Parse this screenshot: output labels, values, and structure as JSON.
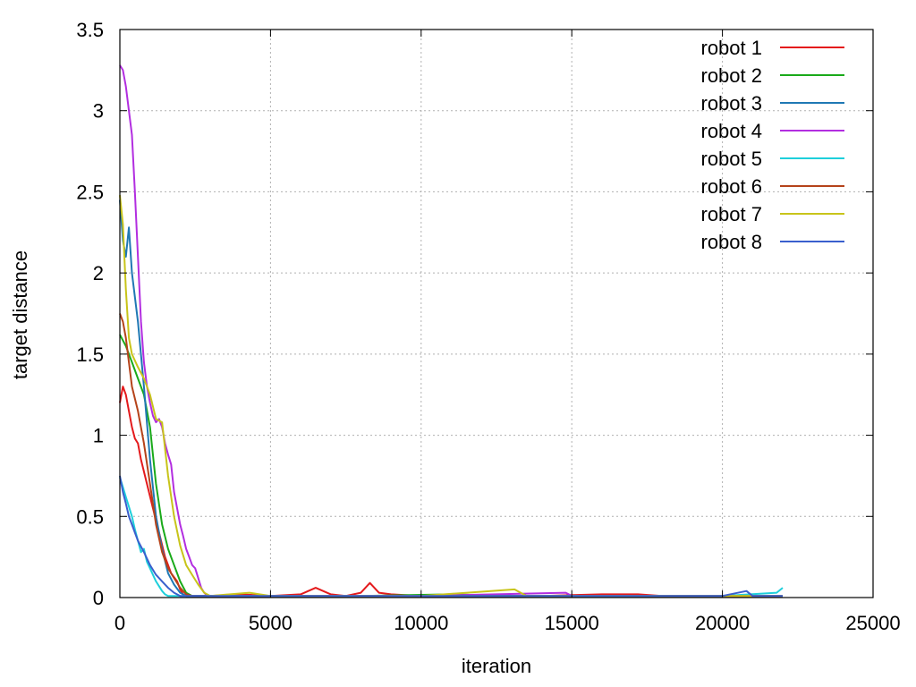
{
  "chart_data": {
    "type": "line",
    "title": "",
    "xlabel": "iteration",
    "ylabel": "target distance",
    "xlim": [
      0,
      25000
    ],
    "ylim": [
      0,
      3.5
    ],
    "xticks": [
      "0",
      "5000",
      "10000",
      "15000",
      "20000",
      "25000"
    ],
    "yticks": [
      "0",
      "0.5",
      "1",
      "1.5",
      "2",
      "2.5",
      "3",
      "3.5"
    ],
    "grid": true,
    "legend_position": "top-right",
    "series": [
      {
        "name": "robot 1",
        "color": "#e41a1c",
        "x": [
          0,
          100,
          200,
          300,
          400,
          500,
          600,
          700,
          900,
          1100,
          1300,
          1500,
          1700,
          1900,
          2000,
          2100,
          2200,
          3000,
          4000,
          5000,
          6000,
          6500,
          7000,
          7500,
          8000,
          8300,
          8600,
          9000,
          10000,
          12000,
          14000,
          16000,
          17200,
          18000,
          20000,
          22000
        ],
        "y": [
          1.2,
          1.3,
          1.25,
          1.15,
          1.05,
          0.98,
          0.95,
          0.85,
          0.7,
          0.55,
          0.4,
          0.25,
          0.15,
          0.1,
          0.05,
          0.02,
          0.01,
          0.01,
          0.02,
          0.01,
          0.02,
          0.06,
          0.02,
          0.01,
          0.03,
          0.09,
          0.03,
          0.02,
          0.01,
          0.01,
          0.01,
          0.02,
          0.02,
          0.01,
          0.01,
          0.01
        ]
      },
      {
        "name": "robot 2",
        "color": "#1aaa1a",
        "x": [
          0,
          200,
          400,
          600,
          800,
          1000,
          1200,
          1400,
          1600,
          1800,
          2000,
          2200,
          2400,
          3000,
          5000,
          8000,
          11000,
          13000,
          15000,
          17000,
          20000,
          22000
        ],
        "y": [
          1.62,
          1.55,
          1.45,
          1.35,
          1.25,
          1.05,
          0.7,
          0.45,
          0.3,
          0.2,
          0.1,
          0.03,
          0.01,
          0.01,
          0.01,
          0.01,
          0.02,
          0.01,
          0.01,
          0.01,
          0.01,
          0.01
        ]
      },
      {
        "name": "robot 3",
        "color": "#1f78b4",
        "x": [
          0,
          100,
          200,
          300,
          400,
          600,
          800,
          1000,
          1200,
          1400,
          1600,
          1800,
          2000,
          2200,
          2500,
          5000,
          10000,
          15000,
          20000,
          22000
        ],
        "y": [
          2.45,
          2.2,
          2.1,
          2.28,
          2.0,
          1.7,
          1.3,
          0.85,
          0.5,
          0.3,
          0.15,
          0.08,
          0.03,
          0.01,
          0.01,
          0.01,
          0.01,
          0.01,
          0.01,
          0.01
        ]
      },
      {
        "name": "robot 4",
        "color": "#b22ee0",
        "x": [
          0,
          100,
          200,
          300,
          400,
          500,
          600,
          700,
          800,
          900,
          1000,
          1100,
          1200,
          1300,
          1400,
          1500,
          1600,
          1700,
          1800,
          1900,
          2000,
          2100,
          2200,
          2300,
          2400,
          2500,
          2600,
          2700,
          2800,
          2900,
          3000,
          5000,
          10000,
          14800,
          15000,
          20000,
          22000
        ],
        "y": [
          3.28,
          3.25,
          3.15,
          3.0,
          2.85,
          2.5,
          2.1,
          1.7,
          1.45,
          1.3,
          1.2,
          1.12,
          1.08,
          1.1,
          1.05,
          0.95,
          0.88,
          0.82,
          0.65,
          0.55,
          0.45,
          0.38,
          0.3,
          0.25,
          0.2,
          0.18,
          0.12,
          0.06,
          0.03,
          0.01,
          0.01,
          0.01,
          0.01,
          0.03,
          0.01,
          0.01,
          0.01
        ]
      },
      {
        "name": "robot 5",
        "color": "#1ecfdb",
        "x": [
          0,
          100,
          200,
          300,
          400,
          500,
          600,
          700,
          800,
          900,
          1000,
          1100,
          1200,
          1300,
          1400,
          1500,
          1600,
          1700,
          1800,
          2000,
          2500,
          5000,
          10000,
          15000,
          20000,
          21800,
          22000
        ],
        "y": [
          0.74,
          0.68,
          0.62,
          0.56,
          0.5,
          0.42,
          0.35,
          0.28,
          0.3,
          0.22,
          0.18,
          0.14,
          0.1,
          0.07,
          0.04,
          0.02,
          0.01,
          0.01,
          0.01,
          0.01,
          0.01,
          0.01,
          0.01,
          0.01,
          0.01,
          0.03,
          0.06
        ]
      },
      {
        "name": "robot 6",
        "color": "#b5431a",
        "x": [
          0,
          100,
          200,
          300,
          400,
          600,
          800,
          1000,
          1200,
          1400,
          1600,
          1800,
          2000,
          2200,
          2400,
          3000,
          5000,
          10000,
          15000,
          20000,
          22000
        ],
        "y": [
          1.75,
          1.7,
          1.6,
          1.45,
          1.3,
          1.15,
          0.95,
          0.7,
          0.45,
          0.28,
          0.18,
          0.12,
          0.06,
          0.02,
          0.01,
          0.01,
          0.01,
          0.01,
          0.01,
          0.01,
          0.01
        ]
      },
      {
        "name": "robot 7",
        "color": "#c8c41a",
        "x": [
          0,
          100,
          200,
          300,
          400,
          600,
          800,
          1000,
          1200,
          1400,
          1600,
          1800,
          2000,
          2200,
          2400,
          2600,
          2800,
          3000,
          4300,
          5000,
          10000,
          13100,
          13500,
          15000,
          20000,
          22000
        ],
        "y": [
          2.48,
          2.3,
          1.9,
          1.6,
          1.5,
          1.42,
          1.35,
          1.25,
          1.1,
          1.08,
          0.75,
          0.5,
          0.32,
          0.2,
          0.14,
          0.08,
          0.03,
          0.01,
          0.03,
          0.01,
          0.01,
          0.05,
          0.01,
          0.01,
          0.01,
          0.01
        ]
      },
      {
        "name": "robot 8",
        "color": "#3a5fcd",
        "x": [
          0,
          100,
          200,
          300,
          400,
          500,
          600,
          800,
          1000,
          1200,
          1400,
          1600,
          1800,
          2000,
          2200,
          2500,
          5000,
          10000,
          15000,
          20000,
          20800,
          21000,
          22000
        ],
        "y": [
          0.75,
          0.65,
          0.58,
          0.5,
          0.45,
          0.4,
          0.35,
          0.28,
          0.2,
          0.14,
          0.1,
          0.06,
          0.03,
          0.01,
          0.01,
          0.01,
          0.01,
          0.01,
          0.01,
          0.01,
          0.04,
          0.01,
          0.01
        ]
      }
    ]
  }
}
